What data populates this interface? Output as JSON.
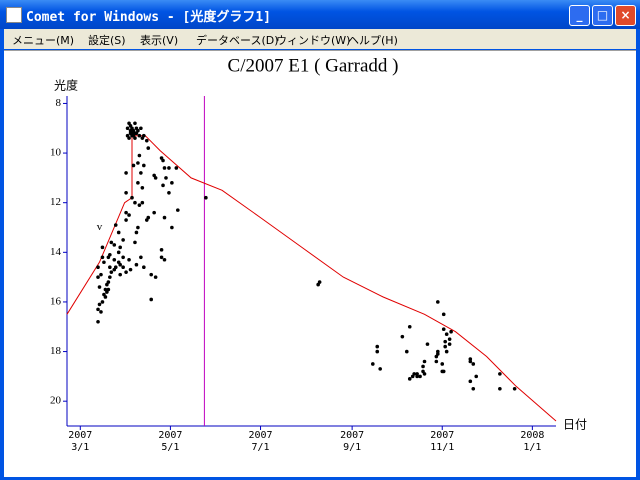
{
  "window": {
    "title": "Comet for Windows - [光度グラフ1]",
    "menu": [
      "メニュー(M)",
      "設定(S)",
      "表示(V)",
      "データベース(D)",
      "ウィンドウ(W)",
      "ヘルプ(H)"
    ]
  },
  "chart_data": {
    "type": "scatter",
    "title": "C/2007 E1 ( Garradd )",
    "y_label": "光度",
    "x_label": "日付",
    "ylim": [
      7.7,
      21
    ],
    "y_inverted": true,
    "yticks": [
      8,
      10,
      12,
      14,
      16,
      18,
      20
    ],
    "xlim": [
      "2007-02-20",
      "2008-01-17"
    ],
    "xticks": [
      {
        "value": "2007-03-01",
        "label": "2007\n3/1"
      },
      {
        "value": "2007-05-01",
        "label": "2007\n5/1"
      },
      {
        "value": "2007-07-01",
        "label": "2007\n7/1"
      },
      {
        "value": "2007-09-01",
        "label": "2007\n9/1"
      },
      {
        "value": "2007-11-01",
        "label": "2007\n11/1"
      },
      {
        "value": "2008-01-01",
        "label": "2008\n1/1"
      }
    ],
    "annotations": [
      {
        "text": "v",
        "x": "2007-03-14",
        "y": 13.0
      }
    ],
    "marker_line": {
      "x": "2007-05-24",
      "color": "#c000c0"
    },
    "curve": {
      "color": "#e00000",
      "x": [
        "2007-02-20",
        "2007-03-14",
        "2007-03-31",
        "2007-04-05",
        "2007-04-05",
        "2007-04-14",
        "2007-04-24",
        "2007-05-15",
        "2007-06-05",
        "2007-07-01",
        "2007-07-29",
        "2007-08-26",
        "2007-09-22",
        "2007-10-20",
        "2007-11-10",
        "2007-12-01",
        "2007-12-21",
        "2008-01-17"
      ],
      "values": [
        16.5,
        14.4,
        12.0,
        11.8,
        9.3,
        9.3,
        9.9,
        11.0,
        11.5,
        12.6,
        13.8,
        15.0,
        15.8,
        16.5,
        17.2,
        18.2,
        19.4,
        20.8
      ]
    },
    "points": {
      "color": "#000000",
      "x": [
        "2007-03-13",
        "2007-03-13",
        "2007-03-13",
        "2007-03-13",
        "2007-03-14",
        "2007-03-14",
        "2007-03-15",
        "2007-03-15",
        "2007-03-16",
        "2007-03-16",
        "2007-03-16",
        "2007-03-17",
        "2007-03-17",
        "2007-03-18",
        "2007-03-18",
        "2007-03-19",
        "2007-03-19",
        "2007-03-20",
        "2007-03-20",
        "2007-03-20",
        "2007-03-21",
        "2007-03-21",
        "2007-03-21",
        "2007-03-22",
        "2007-03-22",
        "2007-03-24",
        "2007-03-24",
        "2007-03-24",
        "2007-03-25",
        "2007-03-25",
        "2007-03-27",
        "2007-03-27",
        "2007-03-27",
        "2007-03-28",
        "2007-03-28",
        "2007-03-28",
        "2007-03-30",
        "2007-03-30",
        "2007-03-30",
        "2007-04-01",
        "2007-04-01",
        "2007-04-01",
        "2007-04-01",
        "2007-04-01",
        "2007-04-02",
        "2007-04-02",
        "2007-04-03",
        "2007-04-03",
        "2007-04-03",
        "2007-04-03",
        "2007-04-04",
        "2007-04-04",
        "2007-04-04",
        "2007-04-04",
        "2007-04-05",
        "2007-04-05",
        "2007-04-05",
        "2007-04-05",
        "2007-04-06",
        "2007-04-06",
        "2007-04-06",
        "2007-04-07",
        "2007-04-07",
        "2007-04-07",
        "2007-04-07",
        "2007-04-07",
        "2007-04-08",
        "2007-04-08",
        "2007-04-08",
        "2007-04-08",
        "2007-04-09",
        "2007-04-09",
        "2007-04-09",
        "2007-04-09",
        "2007-04-10",
        "2007-04-10",
        "2007-04-10",
        "2007-04-11",
        "2007-04-11",
        "2007-04-11",
        "2007-04-12",
        "2007-04-12",
        "2007-04-12",
        "2007-04-13",
        "2007-04-13",
        "2007-04-13",
        "2007-04-15",
        "2007-04-15",
        "2007-04-16",
        "2007-04-16",
        "2007-04-18",
        "2007-04-18",
        "2007-04-20",
        "2007-04-20",
        "2007-04-21",
        "2007-04-21",
        "2007-04-25",
        "2007-04-25",
        "2007-04-25",
        "2007-04-26",
        "2007-04-26",
        "2007-04-27",
        "2007-04-27",
        "2007-04-27",
        "2007-04-28",
        "2007-04-30",
        "2007-04-30",
        "2007-05-02",
        "2007-05-02",
        "2007-05-05",
        "2007-05-06",
        "2007-05-25",
        "2007-08-09",
        "2007-08-10",
        "2007-09-15",
        "2007-09-18",
        "2007-09-18",
        "2007-09-20",
        "2007-10-05",
        "2007-10-08",
        "2007-10-10",
        "2007-10-10",
        "2007-10-12",
        "2007-10-13",
        "2007-10-15",
        "2007-10-15",
        "2007-10-17",
        "2007-10-19",
        "2007-10-19",
        "2007-10-20",
        "2007-10-20",
        "2007-10-22",
        "2007-10-28",
        "2007-10-28",
        "2007-10-29",
        "2007-10-29",
        "2007-10-29",
        "2007-11-01",
        "2007-11-01",
        "2007-11-02",
        "2007-11-02",
        "2007-11-02",
        "2007-11-03",
        "2007-11-03",
        "2007-11-04",
        "2007-11-04",
        "2007-11-06",
        "2007-11-06",
        "2007-11-07",
        "2007-11-20",
        "2007-11-20",
        "2007-11-20",
        "2007-11-22",
        "2007-11-22",
        "2007-11-24",
        "2007-12-10",
        "2007-12-10",
        "2007-12-20"
      ],
      "values": [
        16.8,
        16.3,
        15.0,
        14.6,
        16.1,
        15.4,
        16.4,
        14.9,
        16.0,
        14.2,
        13.8,
        15.7,
        14.4,
        15.5,
        15.8,
        15.3,
        15.6,
        14.2,
        15.2,
        15.5,
        14.6,
        14.1,
        15.0,
        13.6,
        14.8,
        14.3,
        14.7,
        13.7,
        14.6,
        12.9,
        14.4,
        14.0,
        13.2,
        14.5,
        13.8,
        14.9,
        14.6,
        14.2,
        13.5,
        12.7,
        12.4,
        11.6,
        14.8,
        10.8,
        9.3,
        9.0,
        8.8,
        9.4,
        12.5,
        14.3,
        8.9,
        9.2,
        9.1,
        14.7,
        9.0,
        9.3,
        9.2,
        11.8,
        9.3,
        9.1,
        10.5,
        9.2,
        8.8,
        9.4,
        12.0,
        13.6,
        9.0,
        9.2,
        13.2,
        14.5,
        9.1,
        10.4,
        11.2,
        13.0,
        9.3,
        10.1,
        12.1,
        9.0,
        10.8,
        14.2,
        9.4,
        11.4,
        12.0,
        9.3,
        10.5,
        14.6,
        9.5,
        12.7,
        9.8,
        12.6,
        14.9,
        15.9,
        10.9,
        12.4,
        11.0,
        15.0,
        10.2,
        13.9,
        14.2,
        10.3,
        11.3,
        10.6,
        12.6,
        14.3,
        11.0,
        10.6,
        11.6,
        11.2,
        13.0,
        10.6,
        12.3,
        11.8,
        15.3,
        15.2,
        18.5,
        17.8,
        18.0,
        18.7,
        17.4,
        18.0,
        19.1,
        17.0,
        19.0,
        18.9,
        18.9,
        19.0,
        19.0,
        18.8,
        18.6,
        18.4,
        18.9,
        17.7,
        18.4,
        18.2,
        18.0,
        18.1,
        16.0,
        18.8,
        18.5,
        17.1,
        16.5,
        18.8,
        17.6,
        17.8,
        17.3,
        18.0,
        17.7,
        17.5,
        17.2,
        18.3,
        18.4,
        19.2,
        19.5,
        18.5,
        19.0,
        19.5,
        18.9,
        19.5
      ]
    }
  }
}
